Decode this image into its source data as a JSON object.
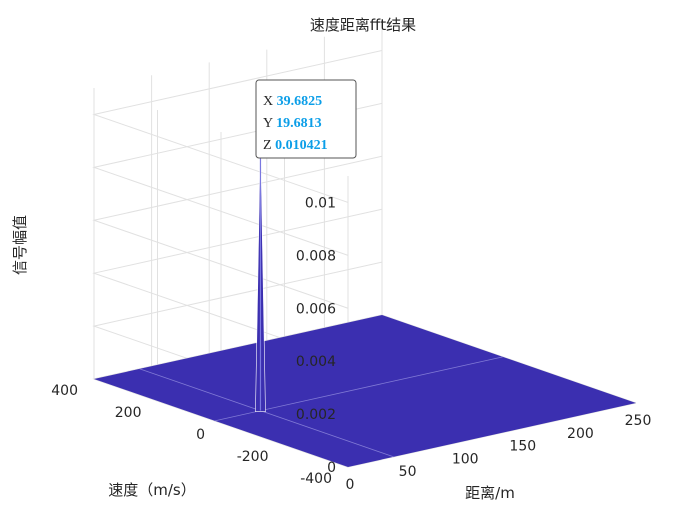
{
  "chart_data": {
    "type": "surface3d",
    "title": "速度距离fft结果",
    "xlabel": "距离/m",
    "ylabel": "速度（m/s）",
    "zlabel": "信号幅值",
    "xlim": [
      0,
      250
    ],
    "ylim": [
      -400,
      400
    ],
    "zlim": [
      0,
      0.011
    ],
    "x_ticks": [
      "0",
      "50",
      "100",
      "150",
      "200",
      "250"
    ],
    "y_ticks": [
      "-400",
      "-200",
      "0",
      "200",
      "400"
    ],
    "z_ticks": [
      "0",
      "0.002",
      "0.004",
      "0.006",
      "0.008",
      "0.01"
    ],
    "x_tick_values": [
      0,
      50,
      100,
      150,
      200,
      250
    ],
    "y_tick_values": [
      -400,
      -200,
      0,
      200,
      400
    ],
    "z_tick_values": [
      0,
      0.002,
      0.004,
      0.006,
      0.008,
      0.01
    ],
    "grid": true,
    "peak": {
      "x": 39.6825,
      "y": 19.6813,
      "z": 0.010421
    },
    "surface_color": "#3b2fb0",
    "peak_color": "#7a78e0",
    "datatip": {
      "x_key": "X",
      "x_val": "39.6825",
      "y_key": "Y",
      "y_val": "19.6813",
      "z_key": "Z",
      "z_val": "0.010421"
    }
  }
}
